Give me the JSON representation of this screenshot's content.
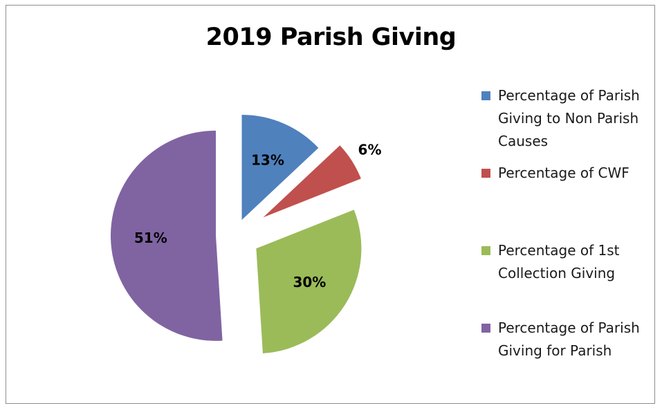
{
  "chart_data": {
    "type": "pie",
    "title": "2019 Parish Giving",
    "slices": [
      {
        "name": "Percentage of Parish Giving to Non Parish Causes",
        "value": 13,
        "label": "13%",
        "color": "#4f81bd"
      },
      {
        "name": "Percentage of CWF",
        "value": 6,
        "label": "6%",
        "color": "#c0504d"
      },
      {
        "name": "Percentage of 1st Collection Giving",
        "value": 30,
        "label": "30%",
        "color": "#9bbb59"
      },
      {
        "name": "Percentage of Parish Giving for Parish",
        "value": 51,
        "label": "51%",
        "color": "#8064a2"
      }
    ],
    "exploded": true,
    "legend_position": "right"
  }
}
